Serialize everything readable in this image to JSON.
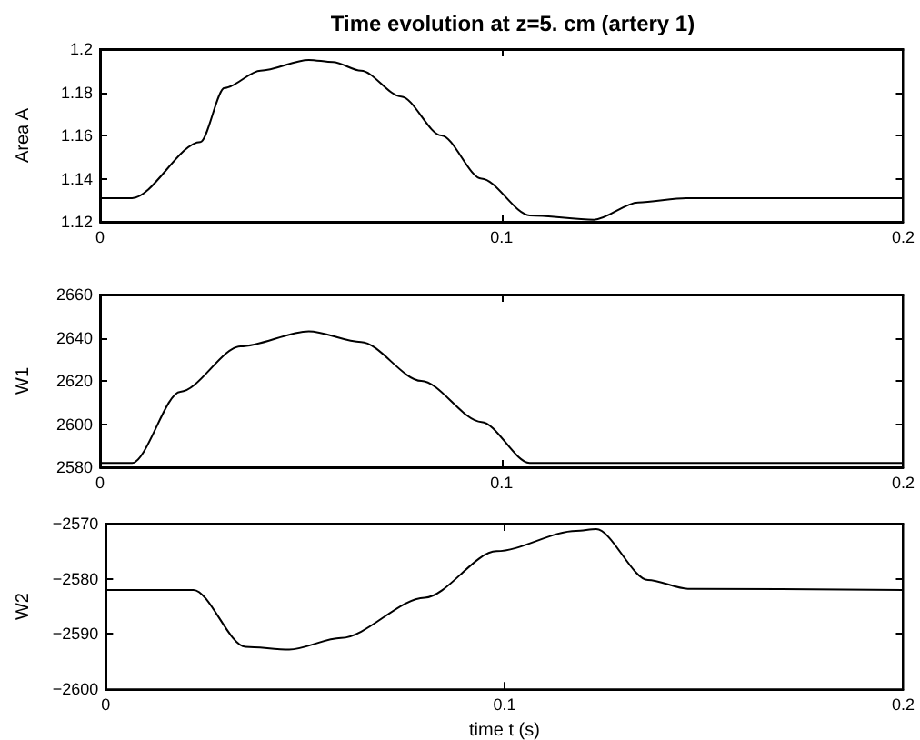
{
  "chart_data": [
    {
      "type": "line",
      "title": "Time evolution at z=5. cm (artery 1)",
      "ylabel": "Area A",
      "x": [
        0,
        0.008,
        0.025,
        0.031,
        0.04,
        0.052,
        0.058,
        0.065,
        0.075,
        0.085,
        0.095,
        0.107,
        0.123,
        0.134,
        0.146,
        0.2
      ],
      "series": [
        {
          "color": "#000000",
          "values": [
            1.131,
            1.131,
            1.157,
            1.182,
            1.19,
            1.195,
            1.194,
            1.19,
            1.178,
            1.16,
            1.14,
            1.123,
            1.121,
            1.129,
            1.131,
            1.131
          ]
        }
      ],
      "xlim": [
        0,
        0.2
      ],
      "xticks": [
        0,
        0.1,
        0.2
      ],
      "ylim": [
        1.12,
        1.2
      ],
      "yticks": [
        1.12,
        1.14,
        1.16,
        1.18,
        1.2
      ],
      "grid": false,
      "marker": "none",
      "line_style": "solid"
    },
    {
      "type": "line",
      "ylabel": "W1",
      "x": [
        0,
        0.008,
        0.02,
        0.035,
        0.052,
        0.065,
        0.08,
        0.095,
        0.107,
        0.2
      ],
      "series": [
        {
          "color": "#000000",
          "values": [
            2582,
            2582,
            2615,
            2636,
            2643,
            2638,
            2620,
            2601,
            2582,
            2582
          ]
        }
      ],
      "xlim": [
        0,
        0.2
      ],
      "xticks": [
        0,
        0.1,
        0.2
      ],
      "ylim": [
        2580,
        2660
      ],
      "yticks": [
        2580,
        2600,
        2620,
        2640,
        2660
      ],
      "grid": false,
      "marker": "none",
      "line_style": "solid"
    },
    {
      "type": "line",
      "ylabel": "W2",
      "xlabel": "time t (s)",
      "x": [
        0,
        0.022,
        0.035,
        0.046,
        0.059,
        0.08,
        0.098,
        0.118,
        0.123,
        0.136,
        0.146,
        0.2
      ],
      "series": [
        {
          "color": "#000000",
          "values": [
            -2582,
            -2582,
            -2592.3,
            -2592.8,
            -2590.7,
            -2583.4,
            -2575,
            -2571.3,
            -2571,
            -2580.2,
            -2581.8,
            -2582
          ]
        }
      ],
      "xlim": [
        0,
        0.2
      ],
      "xticks": [
        0,
        0.1,
        0.2
      ],
      "ylim": [
        -2600,
        -2570
      ],
      "yticks": [
        -2600,
        -2590,
        -2580,
        -2570
      ],
      "grid": false,
      "marker": "none",
      "line_style": "solid"
    }
  ]
}
